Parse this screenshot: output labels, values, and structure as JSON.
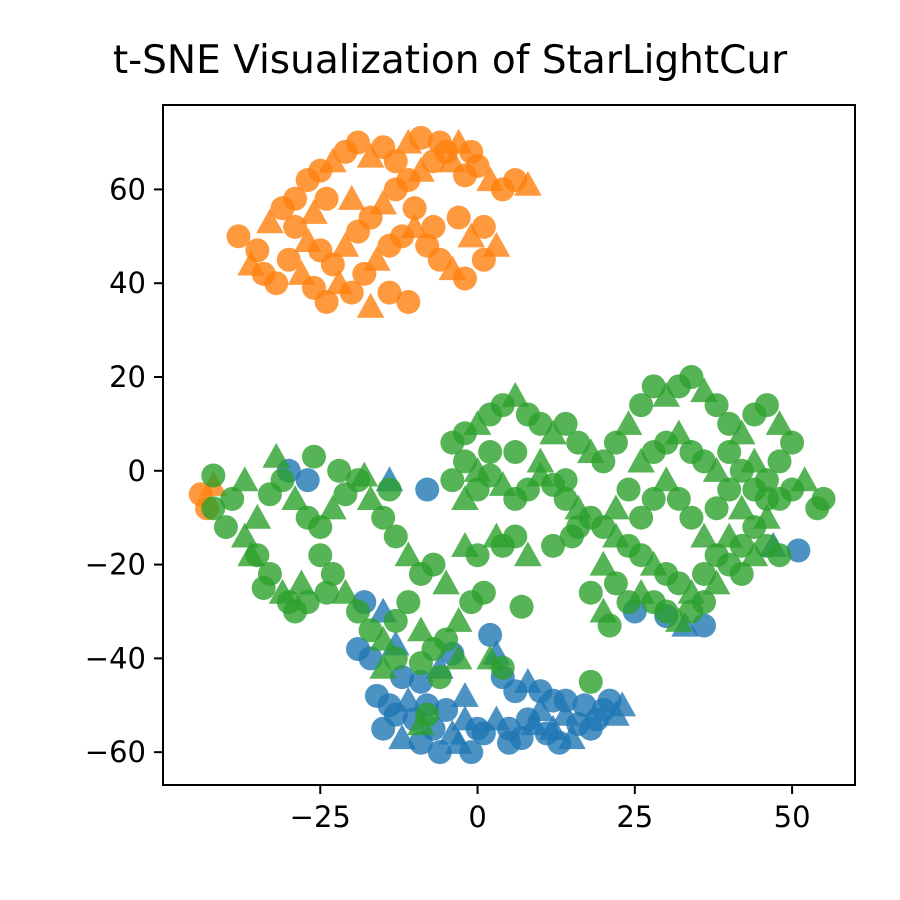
{
  "chart_data": {
    "type": "scatter",
    "title": "t-SNE Visualization of StarLightCur",
    "xlabel": "",
    "ylabel": "",
    "xlim": [
      -50,
      60
    ],
    "ylim": [
      -67,
      78
    ],
    "xticks": [
      -25,
      0,
      25,
      50
    ],
    "xtick_labels": [
      "−25",
      "0",
      "25",
      "50"
    ],
    "yticks": [
      -60,
      -40,
      -20,
      0,
      20,
      40,
      60
    ],
    "ytick_labels": [
      "−60",
      "−40",
      "−20",
      "0",
      "20",
      "40",
      "60"
    ],
    "grid": false,
    "legend": "none",
    "marker_styles": [
      "circle",
      "triangle"
    ],
    "series": [
      {
        "color": "#1f77b4",
        "points": [
          [
            -30,
            0
          ],
          [
            -27,
            -2
          ],
          [
            -14,
            -2
          ],
          [
            -8,
            -4
          ],
          [
            -18,
            -28
          ],
          [
            -15,
            -30
          ],
          [
            -19,
            -38
          ],
          [
            -17,
            -40
          ],
          [
            -13,
            -37
          ],
          [
            -12,
            -44
          ],
          [
            -9,
            -45
          ],
          [
            -6,
            -42
          ],
          [
            -4,
            -39
          ],
          [
            2,
            -35
          ],
          [
            3,
            -39
          ],
          [
            4,
            -44
          ],
          [
            6,
            -47
          ],
          [
            8,
            -45
          ],
          [
            10,
            -47
          ],
          [
            12,
            -49
          ],
          [
            14,
            -52
          ],
          [
            17,
            -50
          ],
          [
            20,
            -51
          ],
          [
            23,
            -50
          ],
          [
            -16,
            -48
          ],
          [
            -14,
            -50
          ],
          [
            -11,
            -49
          ],
          [
            -8,
            -50
          ],
          [
            -5,
            -51
          ],
          [
            -2,
            -53
          ],
          [
            0,
            -55
          ],
          [
            -15,
            -55
          ],
          [
            -12,
            -57
          ],
          [
            -9,
            -58
          ],
          [
            -6,
            -60
          ],
          [
            -3,
            -58
          ],
          [
            -1,
            -60
          ],
          [
            1,
            -56
          ],
          [
            3,
            -53
          ],
          [
            5,
            -55
          ],
          [
            7,
            -57
          ],
          [
            9,
            -54
          ],
          [
            11,
            -56
          ],
          [
            13,
            -58
          ],
          [
            15,
            -57
          ],
          [
            16,
            -54
          ],
          [
            18,
            -55
          ],
          [
            10,
            -51
          ],
          [
            8,
            -53
          ],
          [
            -7,
            -55
          ],
          [
            -4,
            -56
          ],
          [
            -10,
            -53
          ],
          [
            -13,
            -52
          ],
          [
            12,
            -55
          ],
          [
            14,
            -49
          ],
          [
            19,
            -53
          ],
          [
            22,
            -52
          ],
          [
            21,
            -49
          ],
          [
            5,
            -58
          ],
          [
            -2,
            -48
          ],
          [
            25,
            -30
          ],
          [
            30,
            -31
          ],
          [
            33,
            -33
          ],
          [
            36,
            -33
          ],
          [
            51,
            -17
          ],
          [
            47,
            -16
          ]
        ]
      },
      {
        "color": "#ff7f0e",
        "points": [
          [
            -38,
            50
          ],
          [
            -35,
            47
          ],
          [
            -33,
            53
          ],
          [
            -31,
            56
          ],
          [
            -29,
            52
          ],
          [
            -27,
            49
          ],
          [
            -25,
            47
          ],
          [
            -23,
            44
          ],
          [
            -21,
            48
          ],
          [
            -19,
            51
          ],
          [
            -17,
            54
          ],
          [
            -15,
            57
          ],
          [
            -13,
            60
          ],
          [
            -11,
            62
          ],
          [
            -9,
            64
          ],
          [
            -7,
            66
          ],
          [
            -5,
            68
          ],
          [
            -3,
            70
          ],
          [
            -1,
            68
          ],
          [
            0,
            65
          ],
          [
            2,
            62
          ],
          [
            4,
            60
          ],
          [
            6,
            62
          ],
          [
            8,
            61
          ],
          [
            -27,
            62
          ],
          [
            -25,
            64
          ],
          [
            -23,
            66
          ],
          [
            -21,
            68
          ],
          [
            -19,
            70
          ],
          [
            -17,
            67
          ],
          [
            -15,
            69
          ],
          [
            -13,
            66
          ],
          [
            -11,
            70
          ],
          [
            -9,
            71
          ],
          [
            -6,
            70
          ],
          [
            -4,
            66
          ],
          [
            -2,
            63
          ],
          [
            -30,
            45
          ],
          [
            -28,
            42
          ],
          [
            -26,
            39
          ],
          [
            -24,
            36
          ],
          [
            -22,
            40
          ],
          [
            -20,
            38
          ],
          [
            -18,
            42
          ],
          [
            -16,
            45
          ],
          [
            -14,
            48
          ],
          [
            -12,
            50
          ],
          [
            -10,
            52
          ],
          [
            -8,
            48
          ],
          [
            -6,
            45
          ],
          [
            -4,
            43
          ],
          [
            -2,
            41
          ],
          [
            1,
            45
          ],
          [
            3,
            48
          ],
          [
            -34,
            42
          ],
          [
            -32,
            40
          ],
          [
            -26,
            55
          ],
          [
            -24,
            58
          ],
          [
            -29,
            58
          ],
          [
            -36,
            44
          ],
          [
            -14,
            38
          ],
          [
            -11,
            36
          ],
          [
            -17,
            35
          ],
          [
            -7,
            52
          ],
          [
            -3,
            54
          ],
          [
            -1,
            50
          ],
          [
            1,
            52
          ],
          [
            -10,
            56
          ],
          [
            -20,
            58
          ],
          [
            -44,
            -5
          ],
          [
            -43,
            -8
          ],
          [
            -42,
            -3
          ]
        ]
      },
      {
        "color": "#2ca02c",
        "points": [
          [
            -42,
            -8
          ],
          [
            -40,
            -12
          ],
          [
            -37,
            -14
          ],
          [
            -35,
            -18
          ],
          [
            -33,
            -22
          ],
          [
            -31,
            -26
          ],
          [
            -29,
            -30
          ],
          [
            -27,
            -28
          ],
          [
            -35,
            -10
          ],
          [
            -33,
            -5
          ],
          [
            -31,
            -2
          ],
          [
            -29,
            -6
          ],
          [
            -27,
            -10
          ],
          [
            -25,
            -12
          ],
          [
            -23,
            -8
          ],
          [
            -21,
            -5
          ],
          [
            -19,
            -2
          ],
          [
            -17,
            -6
          ],
          [
            -15,
            -10
          ],
          [
            -13,
            -14
          ],
          [
            -11,
            -18
          ],
          [
            -9,
            -22
          ],
          [
            -7,
            -20
          ],
          [
            -5,
            -24
          ],
          [
            -25,
            -18
          ],
          [
            -23,
            -22
          ],
          [
            -21,
            -26
          ],
          [
            -19,
            -30
          ],
          [
            -17,
            -34
          ],
          [
            -15,
            -36
          ],
          [
            -13,
            -32
          ],
          [
            -11,
            -28
          ],
          [
            -9,
            -34
          ],
          [
            -7,
            -38
          ],
          [
            -5,
            -36
          ],
          [
            -3,
            -32
          ],
          [
            -1,
            -28
          ],
          [
            1,
            -26
          ],
          [
            -32,
            3
          ],
          [
            -26,
            3
          ],
          [
            -22,
            0
          ],
          [
            -18,
            -1
          ],
          [
            -14,
            -4
          ],
          [
            -39,
            -6
          ],
          [
            -37,
            -2
          ],
          [
            -4,
            6
          ],
          [
            -2,
            8
          ],
          [
            0,
            10
          ],
          [
            2,
            12
          ],
          [
            4,
            14
          ],
          [
            6,
            16
          ],
          [
            8,
            12
          ],
          [
            10,
            10
          ],
          [
            12,
            8
          ],
          [
            14,
            10
          ],
          [
            16,
            6
          ],
          [
            18,
            4
          ],
          [
            20,
            2
          ],
          [
            22,
            6
          ],
          [
            24,
            10
          ],
          [
            26,
            14
          ],
          [
            28,
            18
          ],
          [
            30,
            16
          ],
          [
            32,
            18
          ],
          [
            34,
            20
          ],
          [
            36,
            17
          ],
          [
            38,
            14
          ],
          [
            40,
            10
          ],
          [
            42,
            8
          ],
          [
            44,
            12
          ],
          [
            46,
            14
          ],
          [
            48,
            10
          ],
          [
            50,
            6
          ],
          [
            -4,
            -2
          ],
          [
            -2,
            -6
          ],
          [
            0,
            -4
          ],
          [
            2,
            -1
          ],
          [
            4,
            -3
          ],
          [
            6,
            -6
          ],
          [
            8,
            -4
          ],
          [
            10,
            -1
          ],
          [
            12,
            -3
          ],
          [
            14,
            -6
          ],
          [
            16,
            -8
          ],
          [
            18,
            -10
          ],
          [
            20,
            -12
          ],
          [
            22,
            -14
          ],
          [
            24,
            -16
          ],
          [
            26,
            -18
          ],
          [
            28,
            -20
          ],
          [
            30,
            -22
          ],
          [
            32,
            -24
          ],
          [
            34,
            -26
          ],
          [
            36,
            -22
          ],
          [
            38,
            -18
          ],
          [
            40,
            -14
          ],
          [
            42,
            -16
          ],
          [
            44,
            -12
          ],
          [
            46,
            -10
          ],
          [
            48,
            -6
          ],
          [
            50,
            -4
          ],
          [
            52,
            -2
          ],
          [
            54,
            -8
          ],
          [
            55,
            -6
          ],
          [
            20,
            -20
          ],
          [
            22,
            -24
          ],
          [
            24,
            -28
          ],
          [
            20,
            -30
          ],
          [
            21,
            -33
          ],
          [
            18,
            -26
          ],
          [
            26,
            -26
          ],
          [
            28,
            -28
          ],
          [
            30,
            -30
          ],
          [
            32,
            -32
          ],
          [
            34,
            -30
          ],
          [
            36,
            -28
          ],
          [
            38,
            -24
          ],
          [
            40,
            -20
          ],
          [
            42,
            -22
          ],
          [
            44,
            -18
          ],
          [
            46,
            -16
          ],
          [
            48,
            -18
          ],
          [
            26,
            2
          ],
          [
            28,
            4
          ],
          [
            30,
            6
          ],
          [
            32,
            8
          ],
          [
            34,
            4
          ],
          [
            36,
            2
          ],
          [
            38,
            0
          ],
          [
            40,
            4
          ],
          [
            42,
            0
          ],
          [
            44,
            2
          ],
          [
            46,
            -2
          ],
          [
            48,
            2
          ],
          [
            -2,
            -16
          ],
          [
            0,
            -18
          ],
          [
            4,
            -16
          ],
          [
            8,
            -18
          ],
          [
            12,
            -16
          ],
          [
            15,
            -14
          ],
          [
            3,
            -14
          ],
          [
            6,
            -14
          ],
          [
            7,
            -29
          ],
          [
            2,
            -40
          ],
          [
            4,
            -42
          ],
          [
            -9,
            -41
          ],
          [
            -15,
            -42
          ],
          [
            -13,
            -40
          ],
          [
            18,
            -45
          ],
          [
            -9,
            -54
          ],
          [
            -8,
            -52
          ],
          [
            -42,
            -1
          ],
          [
            -36,
            -18
          ],
          [
            -34,
            -25
          ],
          [
            -30,
            -28
          ],
          [
            -28,
            -24
          ],
          [
            -24,
            -26
          ],
          [
            -6,
            -44
          ],
          [
            -3,
            -40
          ],
          [
            16,
            -12
          ],
          [
            14,
            -2
          ],
          [
            10,
            2
          ],
          [
            6,
            4
          ],
          [
            2,
            4
          ],
          [
            0,
            0
          ],
          [
            -2,
            2
          ],
          [
            24,
            -4
          ],
          [
            22,
            -8
          ],
          [
            26,
            -10
          ],
          [
            28,
            -6
          ],
          [
            30,
            -2
          ],
          [
            32,
            -6
          ],
          [
            34,
            -10
          ],
          [
            36,
            -14
          ],
          [
            38,
            -8
          ],
          [
            40,
            -4
          ],
          [
            42,
            -8
          ],
          [
            44,
            -4
          ],
          [
            46,
            -6
          ]
        ]
      }
    ]
  }
}
